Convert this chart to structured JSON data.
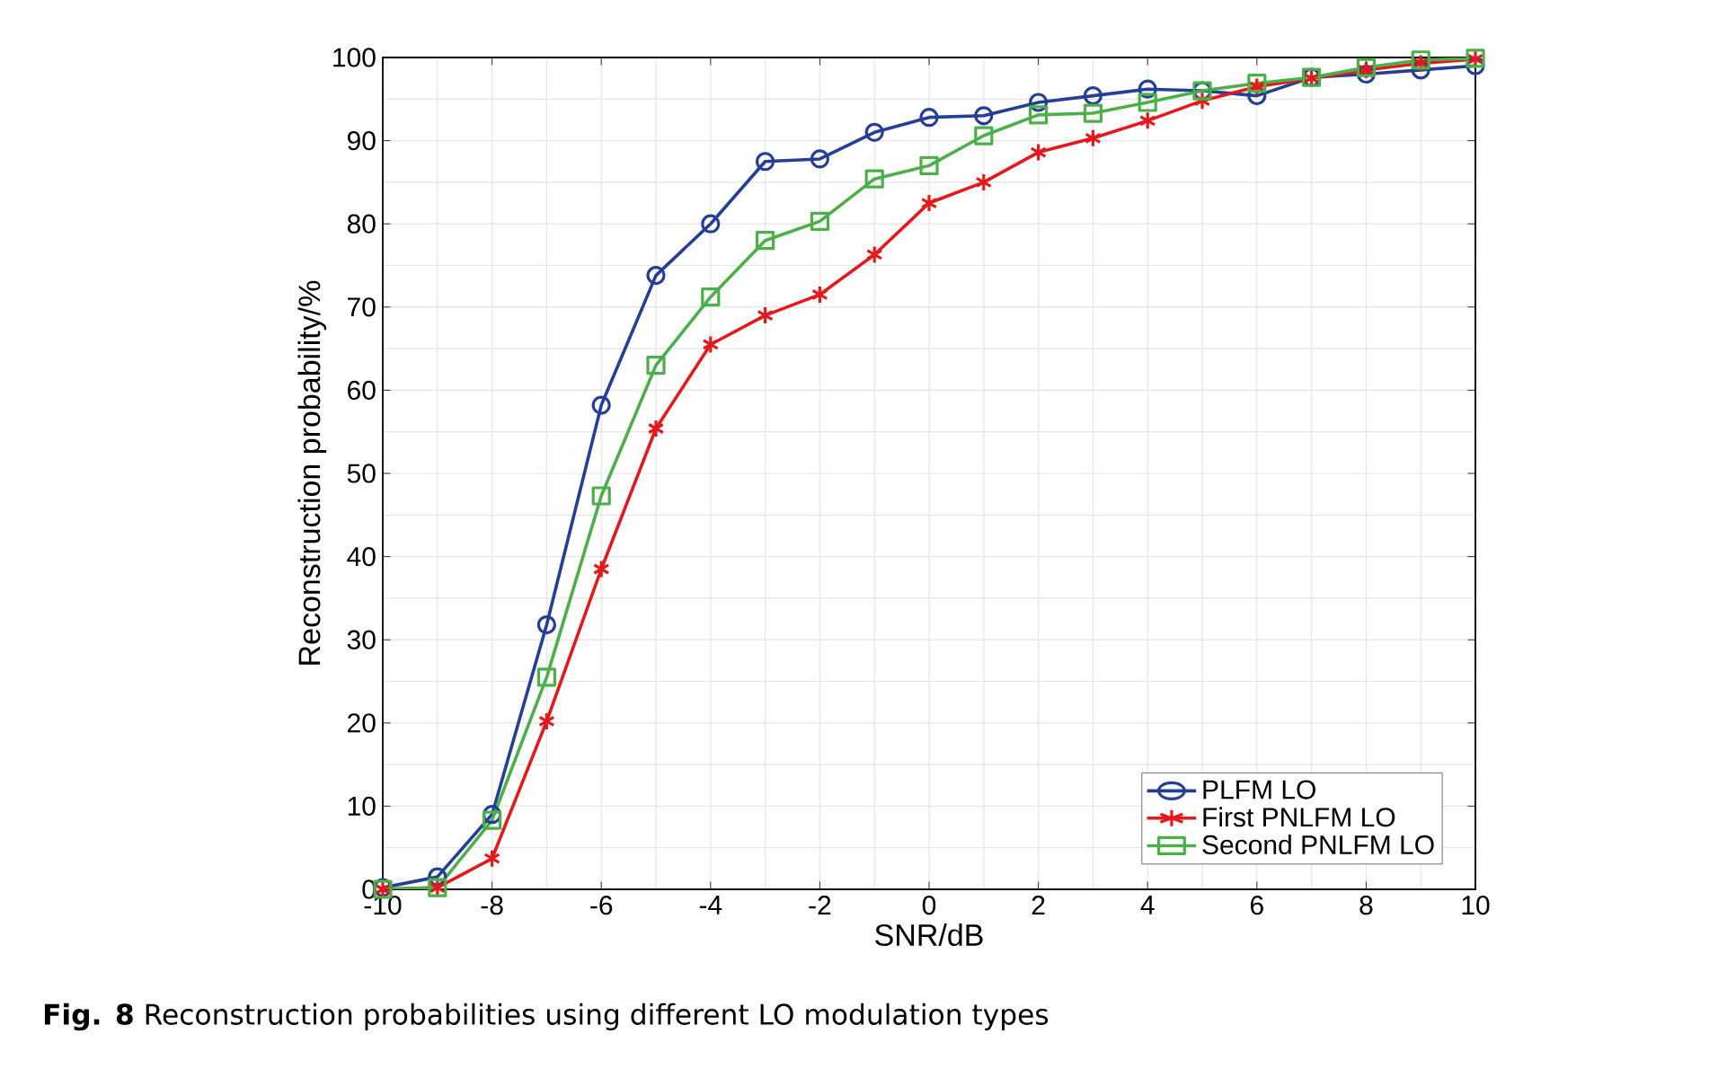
{
  "chart_data": {
    "type": "line",
    "xlabel": "SNR/dB",
    "ylabel": "Reconstruction probability/%",
    "annotations": [
      "**Fig. 8** Reconstruction probabilities using different LO modulation types"
    ],
    "x": [
      -10,
      -9,
      -8,
      -7,
      -6,
      -5,
      -4,
      -3,
      -2,
      -1,
      0,
      1,
      2,
      3,
      4,
      5,
      6,
      7,
      8,
      9,
      10
    ],
    "series": [
      {
        "name": "PLFM LO",
        "color": "#253f94",
        "marker": "circle",
        "values": [
          0.2,
          1.5,
          9,
          31.8,
          58.2,
          73.8,
          80,
          87.5,
          87.8,
          91,
          92.8,
          93,
          94.6,
          95.4,
          96.2,
          96,
          95.4,
          97.6,
          98,
          98.5,
          99
        ]
      },
      {
        "name": "First PNLFM LO",
        "color": "#e31a1c",
        "marker": "cross",
        "values": [
          0,
          0.2,
          3.7,
          20.2,
          38.5,
          55.4,
          65.5,
          69,
          71.5,
          76.3,
          82.5,
          85,
          88.6,
          90.3,
          92.4,
          94.8,
          96.5,
          97.5,
          98.5,
          99.3,
          99.8
        ]
      },
      {
        "name": "Second PNLFM LO",
        "color": "#4daf4a",
        "marker": "square",
        "values": [
          0,
          0.2,
          8.3,
          25.5,
          47.3,
          63,
          71.2,
          78,
          80.3,
          85.4,
          87,
          90.6,
          93.1,
          93.3,
          94.6,
          96,
          96.9,
          97.6,
          98.8,
          99.7,
          99.9
        ]
      }
    ],
    "xlim": [
      -10,
      10
    ],
    "xticks": [
      -10,
      -8,
      -6,
      -4,
      -2,
      0,
      2,
      4,
      6,
      8,
      10
    ],
    "ylim": [
      0,
      100
    ],
    "yticks": [
      0,
      10,
      20,
      30,
      40,
      50,
      60,
      70,
      80,
      90,
      100
    ],
    "grid": true,
    "legend": "bottom right",
    "line_style": "solid"
  }
}
